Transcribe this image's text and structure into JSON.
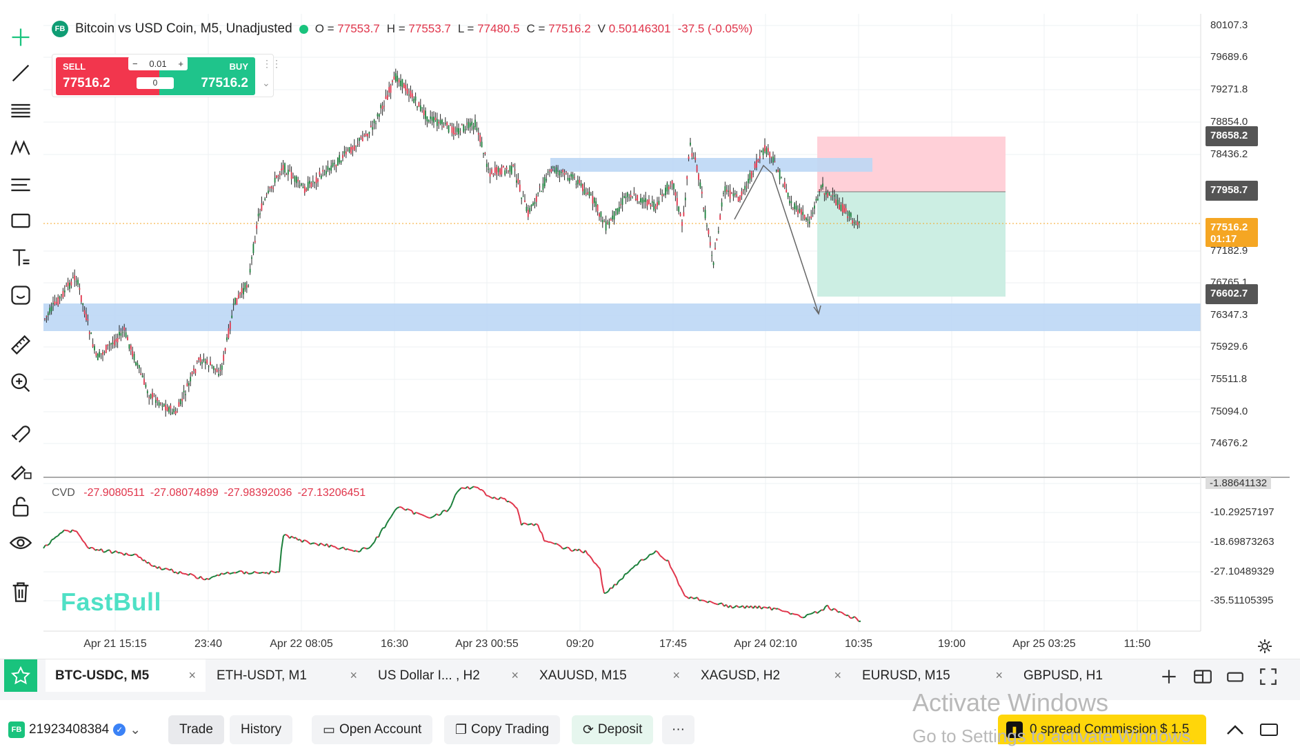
{
  "legend": {
    "symbol_badge": "FB",
    "title": "Bitcoin vs USD Coin, M5, Unadjusted",
    "o_label": "O =",
    "o_value": "77553.7",
    "h_label": "H =",
    "h_value": "77553.7",
    "l_label": "L =",
    "l_value": "77480.5",
    "c_label": "C =",
    "c_value": "77516.2",
    "v_label": "V",
    "v_value": "0.50146301",
    "change": "-37.5 (-0.05%)"
  },
  "trade_widget": {
    "sell_label": "SELL",
    "sell_price": "77516.2",
    "buy_label": "BUY",
    "buy_price": "77516.2",
    "lot_minus": "−",
    "lot_value": "0.01",
    "lot_plus": "+",
    "spread": "0"
  },
  "price_axis": [
    "80107.3",
    "79689.6",
    "79271.8",
    "78854.0",
    "78436.2",
    "77182.9",
    "76765.1",
    "76347.3",
    "75929.6",
    "75511.8",
    "75094.0",
    "74676.2"
  ],
  "price_tags": [
    {
      "text": "78658.2",
      "color": "#555555"
    },
    {
      "text": "77958.7",
      "color": "#555555"
    },
    {
      "text": "77516.2",
      "text2": "01:17",
      "color": "#f5a623"
    },
    {
      "text": "76602.7",
      "color": "#555555"
    }
  ],
  "cvd": {
    "label": "CVD",
    "values": [
      "-27.9080511",
      "-27.08074899",
      "-27.98392036",
      "-27.13206451"
    ],
    "axis": [
      "-1.88641132",
      "-10.29257197",
      "-18.69873263",
      "-27.10489329",
      "-35.51105395"
    ]
  },
  "time_axis": [
    "Apr 21 15:15",
    "23:40",
    "Apr 22 08:05",
    "16:30",
    "Apr 23 00:55",
    "09:20",
    "17:45",
    "Apr 24 02:10",
    "10:35",
    "19:00",
    "Apr 25 03:25",
    "11:50"
  ],
  "watermark": "FastBull",
  "tabs": [
    {
      "label": "BTC-USDC, M5",
      "active": true
    },
    {
      "label": "ETH-USDT, M1"
    },
    {
      "label": "US Dollar I... , H2"
    },
    {
      "label": "XAUUSD, M15"
    },
    {
      "label": "XAGUSD, H2"
    },
    {
      "label": "EURUSD, M15"
    },
    {
      "label": "GBPUSD, H1"
    }
  ],
  "tab_close": "×",
  "bottom": {
    "account_badge": "FB",
    "account_id": "21923408384",
    "trade": "Trade",
    "history": "History",
    "open_account": "Open Account",
    "copy_trading": "Copy Trading",
    "deposit": "Deposit",
    "more": "···",
    "promo": "0 spread Commission $ 1.5"
  },
  "overlay": {
    "activate_title": "Activate Windows",
    "activate_sub": "Go to Settings to activate Windows."
  },
  "colors": {
    "up": "#1a7f3a",
    "down": "#e0344a",
    "zone_blue": "#bcd7f5",
    "sl_pink": "#ffcdd6",
    "tp_green": "#c9ede1",
    "brand_green": "#19c37d"
  }
}
